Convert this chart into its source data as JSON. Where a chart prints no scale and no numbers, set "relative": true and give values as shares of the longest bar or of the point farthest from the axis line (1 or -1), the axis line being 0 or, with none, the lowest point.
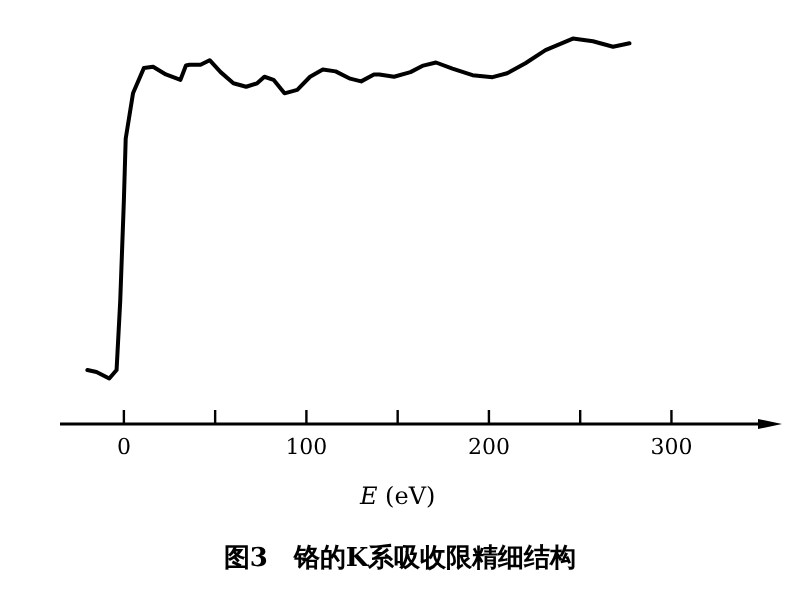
{
  "chart_data": {
    "type": "line",
    "title": "图3　铬的K系吸收限精细结构",
    "xlabel": "*E* (eV)",
    "relative": true,
    "color": "#000000",
    "xlim": [
      -35,
      354
    ],
    "xticks": [
      0,
      {
        "value": 50,
        "label": null
      },
      100,
      {
        "value": 150,
        "label": null
      },
      200,
      {
        "value": 250,
        "label": null
      },
      300
    ],
    "x": [
      -20,
      -15,
      -8,
      -4,
      -2,
      0,
      1,
      5,
      11,
      16,
      23,
      31,
      34,
      36,
      42,
      47,
      53,
      60,
      67,
      73,
      77,
      82,
      88,
      95,
      102,
      109,
      116,
      124,
      130,
      137,
      140,
      148,
      157,
      164,
      171,
      180,
      191,
      202,
      210,
      220,
      231,
      246,
      257,
      268,
      277
    ],
    "values": [
      0.14,
      0.135,
      0.118,
      0.14,
      0.32,
      0.58,
      0.74,
      0.858,
      0.924,
      0.927,
      0.907,
      0.893,
      0.93,
      0.932,
      0.932,
      0.944,
      0.913,
      0.884,
      0.875,
      0.884,
      0.901,
      0.893,
      0.858,
      0.867,
      0.901,
      0.92,
      0.915,
      0.896,
      0.889,
      0.907,
      0.907,
      0.901,
      0.913,
      0.93,
      0.938,
      0.922,
      0.905,
      0.9,
      0.91,
      0.936,
      0.97,
      1,
      0.993,
      0.979,
      0.988
    ]
  }
}
